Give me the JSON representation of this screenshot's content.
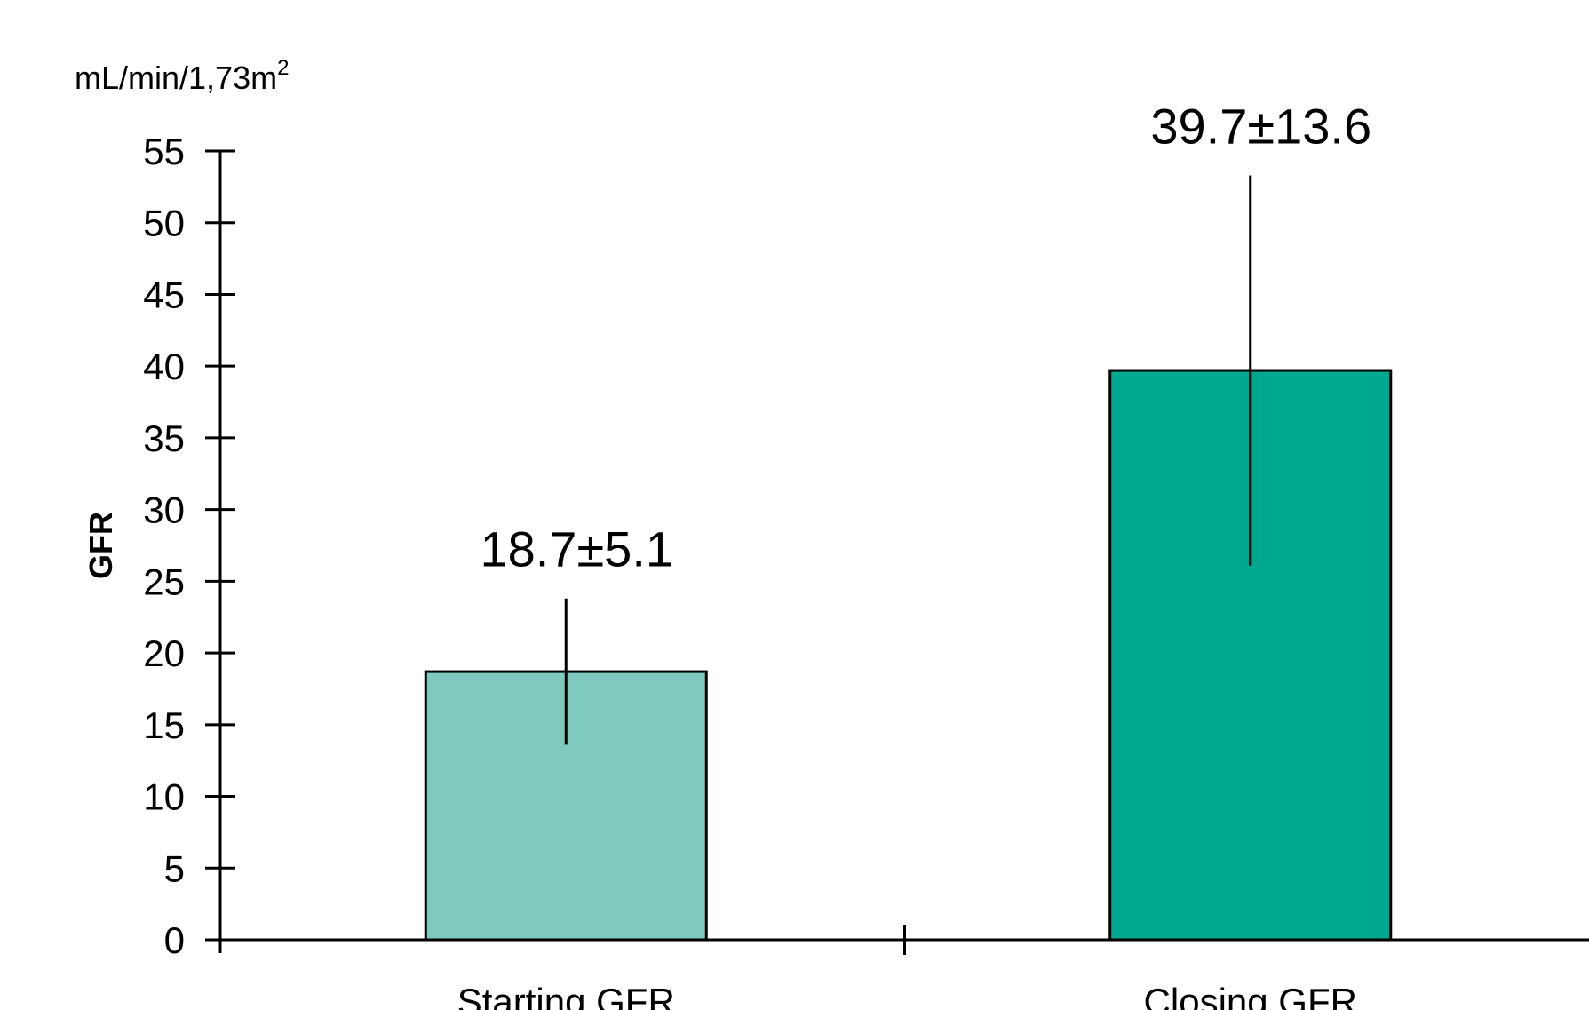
{
  "chart_data": {
    "type": "bar",
    "title": "",
    "xlabel": "",
    "ylabel": "GFR",
    "unit_label": {
      "base": "mL/min/1,73m",
      "sup": "2"
    },
    "ylim": [
      0,
      55
    ],
    "yticks": [
      "0",
      "5",
      "10",
      "15",
      "20",
      "25",
      "30",
      "35",
      "40",
      "45",
      "50",
      "55"
    ],
    "categories": [
      "Starting GFR",
      "Closing GFR"
    ],
    "values": [
      18.7,
      39.7
    ],
    "errors": [
      5.1,
      13.6
    ],
    "data_labels": [
      "18.7±5.1",
      "39.7±13.6"
    ],
    "colors": [
      "#7ecbbd",
      "#00a88f"
    ],
    "grid": false,
    "legend": "none"
  }
}
